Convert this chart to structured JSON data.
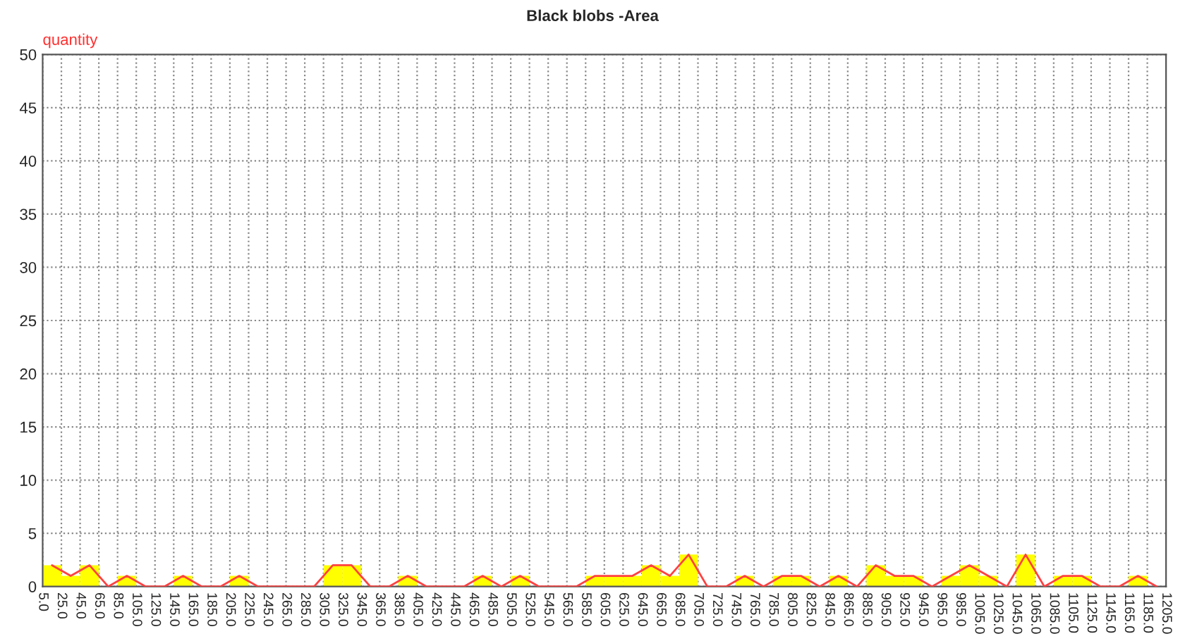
{
  "chart_data": {
    "type": "histogram",
    "title": "Black blobs -Area",
    "ylabel": "quantity",
    "bins": [
      5,
      25,
      45,
      65,
      85,
      105,
      125,
      145,
      165,
      185,
      205,
      225,
      245,
      265,
      285,
      305,
      325,
      345,
      365,
      385,
      405,
      425,
      445,
      465,
      485,
      505,
      525,
      545,
      565,
      585,
      605,
      625,
      645,
      665,
      685,
      705,
      725,
      745,
      765,
      785,
      805,
      825,
      845,
      865,
      885,
      905,
      925,
      945,
      965,
      985,
      1005,
      1025,
      1045,
      1065,
      1085,
      1105,
      1125,
      1145,
      1165,
      1185,
      1205
    ],
    "series": [
      {
        "color": "#ffff00",
        "values": [
          2,
          1,
          2,
          0,
          1,
          0,
          0,
          1,
          0,
          0,
          1,
          0,
          0,
          0,
          0,
          2,
          2,
          0,
          0,
          1,
          0,
          0,
          0,
          1,
          0,
          1,
          0,
          0,
          0,
          1,
          1,
          1,
          2,
          1,
          3,
          0,
          0,
          1,
          0,
          1,
          1,
          0,
          1,
          0,
          2,
          1,
          1,
          0,
          1,
          2,
          1,
          0,
          3,
          0,
          1,
          1,
          0,
          0,
          1,
          0
        ]
      },
      {
        "type": "line",
        "color": "#ff4040",
        "x": [
          15,
          35,
          55,
          75,
          95,
          115,
          135,
          155,
          175,
          195,
          215,
          235,
          255,
          275,
          295,
          315,
          335,
          355,
          375,
          395,
          415,
          435,
          455,
          475,
          495,
          515,
          535,
          555,
          575,
          595,
          615,
          635,
          655,
          675,
          695,
          715,
          735,
          755,
          775,
          795,
          815,
          835,
          855,
          875,
          895,
          915,
          935,
          955,
          975,
          995,
          1015,
          1035,
          1055,
          1075,
          1095,
          1115,
          1135,
          1155,
          1175,
          1195
        ],
        "values": [
          2,
          1,
          2,
          0,
          1,
          0,
          0,
          1,
          0,
          0,
          1,
          0,
          0,
          0,
          0,
          2,
          2,
          0,
          0,
          1,
          0,
          0,
          0,
          1,
          0,
          1,
          0,
          0,
          0,
          1,
          1,
          1,
          2,
          1,
          3,
          0,
          0,
          1,
          0,
          1,
          1,
          0,
          1,
          0,
          2,
          1,
          1,
          0,
          1,
          2,
          1,
          0,
          3,
          0,
          1,
          1,
          0,
          0,
          1,
          0
        ]
      }
    ],
    "xlim": [
      5,
      1205
    ],
    "ylim": [
      0,
      50
    ],
    "xticks": [
      {
        "value": 5,
        "label": "5.0"
      },
      {
        "value": 25,
        "label": "25.0"
      },
      {
        "value": 45,
        "label": "45.0"
      },
      {
        "value": 65,
        "label": "65.0"
      },
      {
        "value": 85,
        "label": "85.0"
      },
      {
        "value": 105,
        "label": "105.0"
      },
      {
        "value": 125,
        "label": "125.0"
      },
      {
        "value": 145,
        "label": "145.0"
      },
      {
        "value": 165,
        "label": "165.0"
      },
      {
        "value": 185,
        "label": "185.0"
      },
      {
        "value": 205,
        "label": "205.0"
      },
      {
        "value": 225,
        "label": "225.0"
      },
      {
        "value": 245,
        "label": "245.0"
      },
      {
        "value": 265,
        "label": "265.0"
      },
      {
        "value": 285,
        "label": "285.0"
      },
      {
        "value": 305,
        "label": "305.0"
      },
      {
        "value": 325,
        "label": "325.0"
      },
      {
        "value": 345,
        "label": "345.0"
      },
      {
        "value": 365,
        "label": "365.0"
      },
      {
        "value": 385,
        "label": "385.0"
      },
      {
        "value": 405,
        "label": "405.0"
      },
      {
        "value": 425,
        "label": "425.0"
      },
      {
        "value": 445,
        "label": "445.0"
      },
      {
        "value": 465,
        "label": "465.0"
      },
      {
        "value": 485,
        "label": "485.0"
      },
      {
        "value": 505,
        "label": "505.0"
      },
      {
        "value": 525,
        "label": "525.0"
      },
      {
        "value": 545,
        "label": "545.0"
      },
      {
        "value": 565,
        "label": "565.0"
      },
      {
        "value": 585,
        "label": "585.0"
      },
      {
        "value": 605,
        "label": "605.0"
      },
      {
        "value": 625,
        "label": "625.0"
      },
      {
        "value": 645,
        "label": "645.0"
      },
      {
        "value": 665,
        "label": "665.0"
      },
      {
        "value": 685,
        "label": "685.0"
      },
      {
        "value": 705,
        "label": "705.0"
      },
      {
        "value": 725,
        "label": "725.0"
      },
      {
        "value": 745,
        "label": "745.0"
      },
      {
        "value": 765,
        "label": "765.0"
      },
      {
        "value": 785,
        "label": "785.0"
      },
      {
        "value": 805,
        "label": "805.0"
      },
      {
        "value": 825,
        "label": "825.0"
      },
      {
        "value": 845,
        "label": "845.0"
      },
      {
        "value": 865,
        "label": "865.0"
      },
      {
        "value": 885,
        "label": "885.0"
      },
      {
        "value": 905,
        "label": "905.0"
      },
      {
        "value": 925,
        "label": "925.0"
      },
      {
        "value": 945,
        "label": "945.0"
      },
      {
        "value": 965,
        "label": "965.0"
      },
      {
        "value": 985,
        "label": "985.0"
      },
      {
        "value": 1005,
        "label": "1005.0"
      },
      {
        "value": 1025,
        "label": "1025.0"
      },
      {
        "value": 1045,
        "label": "1045.0"
      },
      {
        "value": 1065,
        "label": "1065.0"
      },
      {
        "value": 1085,
        "label": "1085.0"
      },
      {
        "value": 1105,
        "label": "1105.0"
      },
      {
        "value": 1125,
        "label": "1125.0"
      },
      {
        "value": 1145,
        "label": "1145.0"
      },
      {
        "value": 1165,
        "label": "1165.0"
      },
      {
        "value": 1185,
        "label": "1185.0"
      },
      {
        "value": 1205,
        "label": "1205.0"
      }
    ],
    "yticks": [
      0,
      5,
      10,
      15,
      20,
      25,
      30,
      35,
      40,
      45,
      50
    ],
    "grid": true
  }
}
